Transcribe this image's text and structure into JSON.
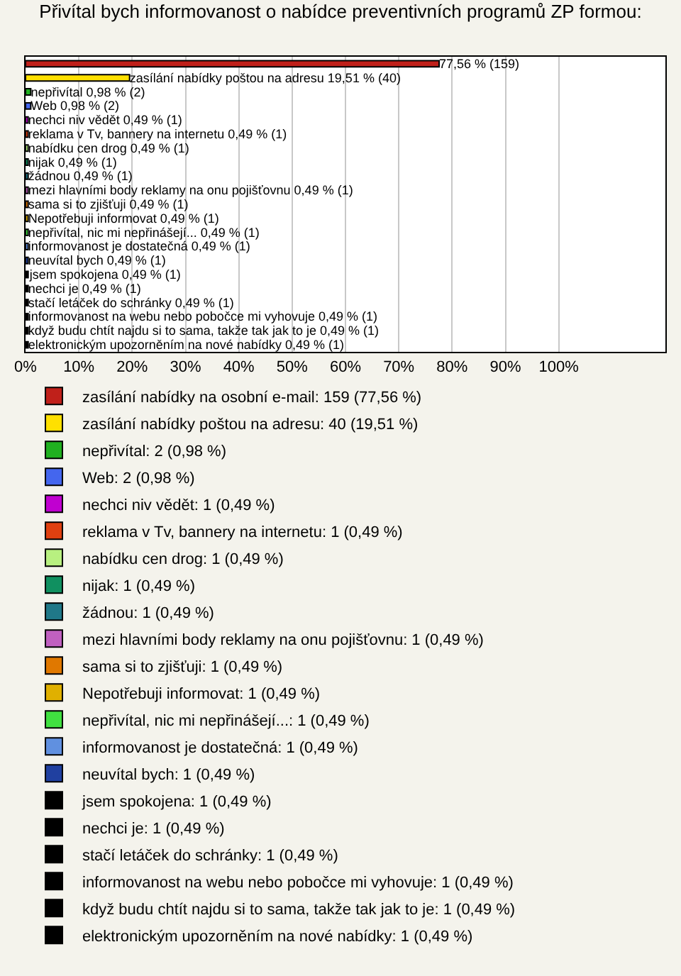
{
  "chart_data": {
    "type": "bar",
    "orientation": "horizontal",
    "title": "Přivítal bych informovanost o nabídce preventivních programů ZP formou:",
    "categories": [
      null,
      null,
      null,
      null,
      null,
      null,
      null,
      null,
      null,
      null,
      null,
      null,
      null,
      null,
      null,
      null,
      null,
      null,
      null,
      null,
      null
    ],
    "series": [
      {
        "name": "zasílání nabídky na osobní e-mail: 159 (77,56 %)",
        "color": "#c0201a",
        "values": [
          77.56,
          null,
          null,
          null,
          null,
          null,
          null,
          null,
          null,
          null,
          null,
          null,
          null,
          null,
          null,
          null,
          null,
          null,
          null,
          null,
          null
        ],
        "value_labels": [
          "77,56 % (159)",
          null,
          null,
          null,
          null,
          null,
          null,
          null,
          null,
          null,
          null,
          null,
          null,
          null,
          null,
          null,
          null,
          null,
          null,
          null,
          null
        ]
      },
      {
        "name": "zasílání nabídky poštou na adresu: 40 (19,51 %)",
        "color": "#ffe000",
        "values": [
          null,
          19.51,
          null,
          null,
          null,
          null,
          null,
          null,
          null,
          null,
          null,
          null,
          null,
          null,
          null,
          null,
          null,
          null,
          null,
          null,
          null
        ],
        "value_labels": [
          null,
          "zasílání nabídky poštou na adresu 19,51 % (40)",
          null,
          null,
          null,
          null,
          null,
          null,
          null,
          null,
          null,
          null,
          null,
          null,
          null,
          null,
          null,
          null,
          null,
          null,
          null
        ]
      },
      {
        "name": "nepřivítal: 2 (0,98 %)",
        "color": "#20b020",
        "values": [
          null,
          null,
          0.98,
          null,
          null,
          null,
          null,
          null,
          null,
          null,
          null,
          null,
          null,
          null,
          null,
          null,
          null,
          null,
          null,
          null,
          null
        ],
        "value_labels": [
          null,
          null,
          "nepřivítal 0,98 % (2)",
          null,
          null,
          null,
          null,
          null,
          null,
          null,
          null,
          null,
          null,
          null,
          null,
          null,
          null,
          null,
          null,
          null,
          null
        ]
      },
      {
        "name": "Web: 2 (0,98 %)",
        "color": "#4466ee",
        "values": [
          null,
          null,
          null,
          0.98,
          null,
          null,
          null,
          null,
          null,
          null,
          null,
          null,
          null,
          null,
          null,
          null,
          null,
          null,
          null,
          null,
          null
        ],
        "value_labels": [
          null,
          null,
          null,
          "Web 0,98 % (2)",
          null,
          null,
          null,
          null,
          null,
          null,
          null,
          null,
          null,
          null,
          null,
          null,
          null,
          null,
          null,
          null,
          null
        ]
      },
      {
        "name": "nechci niv vědět: 1 (0,49 %)",
        "color": "#c000d0",
        "values": [
          null,
          null,
          null,
          null,
          0.49,
          null,
          null,
          null,
          null,
          null,
          null,
          null,
          null,
          null,
          null,
          null,
          null,
          null,
          null,
          null,
          null
        ],
        "value_labels": [
          null,
          null,
          null,
          null,
          "nechci niv vědět 0,49 % (1)",
          null,
          null,
          null,
          null,
          null,
          null,
          null,
          null,
          null,
          null,
          null,
          null,
          null,
          null,
          null,
          null
        ]
      },
      {
        "name": "reklama v Tv, bannery na internetu: 1 (0,49 %)",
        "color": "#e04010",
        "values": [
          null,
          null,
          null,
          null,
          null,
          0.49,
          null,
          null,
          null,
          null,
          null,
          null,
          null,
          null,
          null,
          null,
          null,
          null,
          null,
          null,
          null
        ],
        "value_labels": [
          null,
          null,
          null,
          null,
          null,
          "reklama v Tv, bannery na internetu 0,49 % (1)",
          null,
          null,
          null,
          null,
          null,
          null,
          null,
          null,
          null,
          null,
          null,
          null,
          null,
          null,
          null
        ]
      },
      {
        "name": "nabídku cen drog: 1 (0,49 %)",
        "color": "#b8f080",
        "values": [
          null,
          null,
          null,
          null,
          null,
          null,
          0.49,
          null,
          null,
          null,
          null,
          null,
          null,
          null,
          null,
          null,
          null,
          null,
          null,
          null,
          null
        ],
        "value_labels": [
          null,
          null,
          null,
          null,
          null,
          null,
          "nabídku cen drog 0,49 % (1)",
          null,
          null,
          null,
          null,
          null,
          null,
          null,
          null,
          null,
          null,
          null,
          null,
          null,
          null
        ]
      },
      {
        "name": "nijak: 1 (0,49 %)",
        "color": "#109060",
        "values": [
          null,
          null,
          null,
          null,
          null,
          null,
          null,
          0.49,
          null,
          null,
          null,
          null,
          null,
          null,
          null,
          null,
          null,
          null,
          null,
          null,
          null
        ],
        "value_labels": [
          null,
          null,
          null,
          null,
          null,
          null,
          null,
          "nijak 0,49 % (1)",
          null,
          null,
          null,
          null,
          null,
          null,
          null,
          null,
          null,
          null,
          null,
          null,
          null
        ]
      },
      {
        "name": "žádnou: 1 (0,49 %)",
        "color": "#207888",
        "values": [
          null,
          null,
          null,
          null,
          null,
          null,
          null,
          null,
          0.49,
          null,
          null,
          null,
          null,
          null,
          null,
          null,
          null,
          null,
          null,
          null,
          null
        ],
        "value_labels": [
          null,
          null,
          null,
          null,
          null,
          null,
          null,
          null,
          "žádnou 0,49 % (1)",
          null,
          null,
          null,
          null,
          null,
          null,
          null,
          null,
          null,
          null,
          null,
          null
        ]
      },
      {
        "name": "mezi hlavními body reklamy na onu pojišťovnu: 1 (0,49 %)",
        "color": "#c060c0",
        "values": [
          null,
          null,
          null,
          null,
          null,
          null,
          null,
          null,
          null,
          0.49,
          null,
          null,
          null,
          null,
          null,
          null,
          null,
          null,
          null,
          null,
          null
        ],
        "value_labels": [
          null,
          null,
          null,
          null,
          null,
          null,
          null,
          null,
          null,
          "mezi hlavními body reklamy na onu pojišťovnu 0,49 % (1)",
          null,
          null,
          null,
          null,
          null,
          null,
          null,
          null,
          null,
          null,
          null
        ]
      },
      {
        "name": "sama si to zjišťuji: 1 (0,49 %)",
        "color": "#e07800",
        "values": [
          null,
          null,
          null,
          null,
          null,
          null,
          null,
          null,
          null,
          null,
          0.49,
          null,
          null,
          null,
          null,
          null,
          null,
          null,
          null,
          null,
          null
        ],
        "value_labels": [
          null,
          null,
          null,
          null,
          null,
          null,
          null,
          null,
          null,
          null,
          "sama si to zjišťuji 0,49 % (1)",
          null,
          null,
          null,
          null,
          null,
          null,
          null,
          null,
          null,
          null
        ]
      },
      {
        "name": "Nepotřebuji informovat: 1 (0,49 %)",
        "color": "#e0b000",
        "values": [
          null,
          null,
          null,
          null,
          null,
          null,
          null,
          null,
          null,
          null,
          null,
          0.49,
          null,
          null,
          null,
          null,
          null,
          null,
          null,
          null,
          null
        ],
        "value_labels": [
          null,
          null,
          null,
          null,
          null,
          null,
          null,
          null,
          null,
          null,
          null,
          "Nepotřebuji informovat 0,49 % (1)",
          null,
          null,
          null,
          null,
          null,
          null,
          null,
          null,
          null
        ]
      },
      {
        "name": "nepřivítal, nic mi nepřinášejí...: 1 (0,49 %)",
        "color": "#40e040",
        "values": [
          null,
          null,
          null,
          null,
          null,
          null,
          null,
          null,
          null,
          null,
          null,
          null,
          0.49,
          null,
          null,
          null,
          null,
          null,
          null,
          null,
          null
        ],
        "value_labels": [
          null,
          null,
          null,
          null,
          null,
          null,
          null,
          null,
          null,
          null,
          null,
          null,
          "nepřivítal, nic mi nepřinášejí... 0,49 % (1)",
          null,
          null,
          null,
          null,
          null,
          null,
          null,
          null
        ]
      },
      {
        "name": "informovanost je dostatečná: 1 (0,49 %)",
        "color": "#6090e0",
        "values": [
          null,
          null,
          null,
          null,
          null,
          null,
          null,
          null,
          null,
          null,
          null,
          null,
          null,
          0.49,
          null,
          null,
          null,
          null,
          null,
          null,
          null
        ],
        "value_labels": [
          null,
          null,
          null,
          null,
          null,
          null,
          null,
          null,
          null,
          null,
          null,
          null,
          null,
          "informovanost je dostatečná 0,49 % (1)",
          null,
          null,
          null,
          null,
          null,
          null,
          null
        ]
      },
      {
        "name": "neuvítal bych: 1 (0,49 %)",
        "color": "#2040a0",
        "values": [
          null,
          null,
          null,
          null,
          null,
          null,
          null,
          null,
          null,
          null,
          null,
          null,
          null,
          null,
          0.49,
          null,
          null,
          null,
          null,
          null,
          null
        ],
        "value_labels": [
          null,
          null,
          null,
          null,
          null,
          null,
          null,
          null,
          null,
          null,
          null,
          null,
          null,
          null,
          "neuvítal bych 0,49 % (1)",
          null,
          null,
          null,
          null,
          null,
          null
        ]
      },
      {
        "name": "jsem spokojena: 1 (0,49 %)",
        "color": "#000000",
        "values": [
          null,
          null,
          null,
          null,
          null,
          null,
          null,
          null,
          null,
          null,
          null,
          null,
          null,
          null,
          null,
          0.49,
          null,
          null,
          null,
          null,
          null
        ],
        "value_labels": [
          null,
          null,
          null,
          null,
          null,
          null,
          null,
          null,
          null,
          null,
          null,
          null,
          null,
          null,
          null,
          "jsem spokojena 0,49 % (1)",
          null,
          null,
          null,
          null,
          null
        ]
      },
      {
        "name": "nechci je: 1 (0,49 %)",
        "color": "#000000",
        "values": [
          null,
          null,
          null,
          null,
          null,
          null,
          null,
          null,
          null,
          null,
          null,
          null,
          null,
          null,
          null,
          null,
          0.49,
          null,
          null,
          null,
          null
        ],
        "value_labels": [
          null,
          null,
          null,
          null,
          null,
          null,
          null,
          null,
          null,
          null,
          null,
          null,
          null,
          null,
          null,
          null,
          "nechci je 0,49 % (1)",
          null,
          null,
          null,
          null
        ]
      },
      {
        "name": "stačí letáček do schránky: 1 (0,49 %)",
        "color": "#000000",
        "values": [
          null,
          null,
          null,
          null,
          null,
          null,
          null,
          null,
          null,
          null,
          null,
          null,
          null,
          null,
          null,
          null,
          null,
          0.49,
          null,
          null,
          null
        ],
        "value_labels": [
          null,
          null,
          null,
          null,
          null,
          null,
          null,
          null,
          null,
          null,
          null,
          null,
          null,
          null,
          null,
          null,
          null,
          "stačí letáček do schránky 0,49 % (1)",
          null,
          null,
          null
        ]
      },
      {
        "name": "informovanost na webu nebo pobočce mi vyhovuje: 1 (0,49 %)",
        "color": "#000000",
        "values": [
          null,
          null,
          null,
          null,
          null,
          null,
          null,
          null,
          null,
          null,
          null,
          null,
          null,
          null,
          null,
          null,
          null,
          null,
          0.49,
          null,
          null
        ],
        "value_labels": [
          null,
          null,
          null,
          null,
          null,
          null,
          null,
          null,
          null,
          null,
          null,
          null,
          null,
          null,
          null,
          null,
          null,
          null,
          "informovanost na webu nebo pobočce mi vyhovuje 0,49 % (1)",
          null,
          null
        ]
      },
      {
        "name": "když budu chtít najdu si to sama, takže tak jak to je: 1 (0,49 %)",
        "color": "#000000",
        "values": [
          null,
          null,
          null,
          null,
          null,
          null,
          null,
          null,
          null,
          null,
          null,
          null,
          null,
          null,
          null,
          null,
          null,
          null,
          null,
          0.49,
          null
        ],
        "value_labels": [
          null,
          null,
          null,
          null,
          null,
          null,
          null,
          null,
          null,
          null,
          null,
          null,
          null,
          null,
          null,
          null,
          null,
          null,
          null,
          "když budu chtít najdu si to sama, takže tak jak to je 0,49 % (1)",
          null
        ]
      },
      {
        "name": "elektronickým upozorněním na nové nabídky: 1 (0,49 %)",
        "color": "#000000",
        "values": [
          null,
          null,
          null,
          null,
          null,
          null,
          null,
          null,
          null,
          null,
          null,
          null,
          null,
          null,
          null,
          null,
          null,
          null,
          null,
          null,
          0.49
        ],
        "value_labels": [
          null,
          null,
          null,
          null,
          null,
          null,
          null,
          null,
          null,
          null,
          null,
          null,
          null,
          null,
          null,
          null,
          null,
          null,
          null,
          null,
          "elektronickým upozorněním na nové nabídky 0,49 % (1)"
        ]
      }
    ],
    "xlim": [
      0,
      120
    ],
    "xticks": [
      {
        "value": 0,
        "label": "0%"
      },
      {
        "value": 10,
        "label": "10%"
      },
      {
        "value": 20,
        "label": "20%"
      },
      {
        "value": 30,
        "label": "30%"
      },
      {
        "value": 40,
        "label": "40%"
      },
      {
        "value": 50,
        "label": "50%"
      },
      {
        "value": 60,
        "label": "60%"
      },
      {
        "value": 70,
        "label": "70%"
      },
      {
        "value": 80,
        "label": "80%"
      },
      {
        "value": 90,
        "label": "90%"
      },
      {
        "value": 100,
        "label": "100%"
      }
    ],
    "grid": "x",
    "legend": "bottom",
    "tick_labels": "x"
  }
}
